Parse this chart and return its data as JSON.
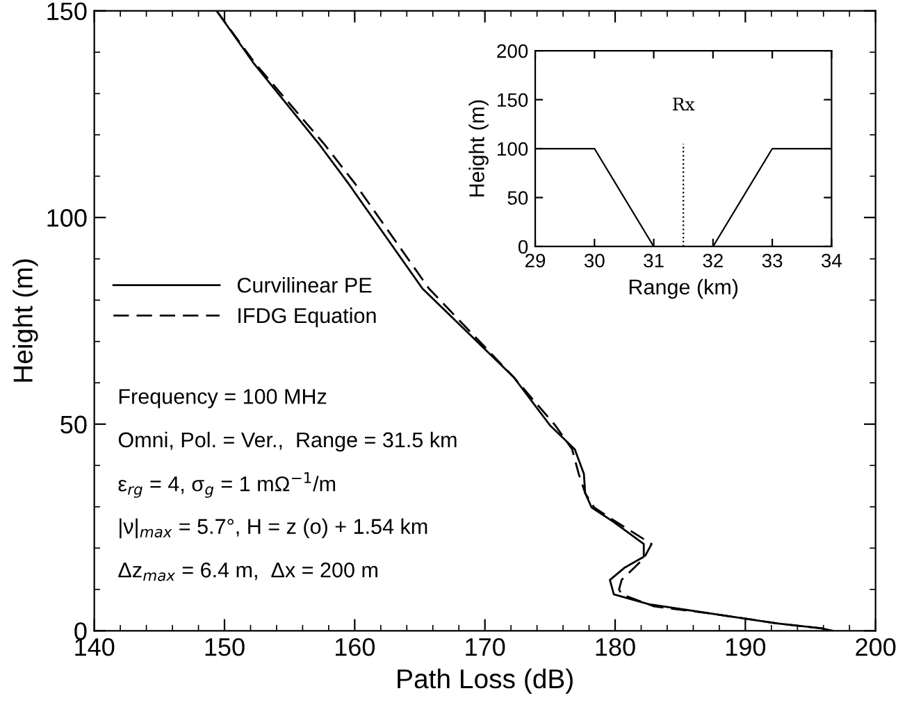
{
  "chart_data": [
    {
      "type": "line",
      "xlabel": "Path Loss (dB)",
      "ylabel": "Height (m)",
      "series": [
        {
          "name": "Curvilinear PE",
          "color": "#000000",
          "line_style": "solid",
          "x": [
            149.4,
            152.2,
            157.3,
            159.5,
            165.2,
            172.2,
            175.0,
            176.9,
            177.6,
            177.7,
            178.2,
            179.9,
            182.2,
            182.2,
            180.7,
            179.6,
            179.9,
            182.6,
            187.5,
            192.4,
            195.8,
            196.7
          ],
          "values": [
            150,
            137.5,
            117.6,
            108.3,
            82.8,
            61.4,
            49.7,
            43.9,
            38,
            33.3,
            29.8,
            26.3,
            21,
            17.9,
            15.2,
            12.3,
            8.8,
            6.4,
            4.1,
            1.8,
            0.6,
            0
          ]
        },
        {
          "name": "IFDG Equation",
          "color": "#000000",
          "line_style": "dashed",
          "x": [
            149.4,
            152.3,
            157.7,
            160.0,
            165.7,
            172.2,
            175.4,
            176.7,
            177.2,
            177.7,
            178.4,
            180.1,
            182.8,
            182.2,
            180.5,
            180.3,
            180.5,
            183.0,
            187.5,
            192.4,
            195.8,
            196.7
          ],
          "values": [
            150,
            137.5,
            117.6,
            108.3,
            82.8,
            61.4,
            49.7,
            43.9,
            38,
            33.3,
            29.8,
            26.3,
            21,
            17.5,
            12.3,
            10,
            8.8,
            5.9,
            4.1,
            1.8,
            0.6,
            0
          ]
        }
      ],
      "xlim": [
        140,
        200
      ],
      "ylim": [
        0,
        150
      ],
      "xticks": [
        140,
        {
          "value": 142,
          "label": null
        },
        {
          "value": 144,
          "label": null
        },
        {
          "value": 146,
          "label": null
        },
        {
          "value": 148,
          "label": null
        },
        150,
        {
          "value": 152,
          "label": null
        },
        {
          "value": 154,
          "label": null
        },
        {
          "value": 156,
          "label": null
        },
        {
          "value": 158,
          "label": null
        },
        160,
        {
          "value": 162,
          "label": null
        },
        {
          "value": 164,
          "label": null
        },
        {
          "value": 166,
          "label": null
        },
        {
          "value": 168,
          "label": null
        },
        170,
        {
          "value": 172,
          "label": null
        },
        {
          "value": 174,
          "label": null
        },
        {
          "value": 176,
          "label": null
        },
        {
          "value": 178,
          "label": null
        },
        180,
        {
          "value": 182,
          "label": null
        },
        {
          "value": 184,
          "label": null
        },
        {
          "value": 186,
          "label": null
        },
        {
          "value": 188,
          "label": null
        },
        190,
        {
          "value": 192,
          "label": null
        },
        {
          "value": 194,
          "label": null
        },
        {
          "value": 196,
          "label": null
        },
        {
          "value": 198,
          "label": null
        },
        200
      ],
      "yticks": [
        0,
        {
          "value": 10,
          "label": null
        },
        {
          "value": 20,
          "label": null
        },
        {
          "value": 30,
          "label": null
        },
        {
          "value": 40,
          "label": null
        },
        50,
        {
          "value": 60,
          "label": null
        },
        {
          "value": 70,
          "label": null
        },
        {
          "value": 80,
          "label": null
        },
        {
          "value": 90,
          "label": null
        },
        100,
        {
          "value": 110,
          "label": null
        },
        {
          "value": 120,
          "label": null
        },
        {
          "value": 130,
          "label": null
        },
        {
          "value": 140,
          "label": null
        },
        150
      ],
      "grid": false,
      "legend": "center left",
      "annotations": [
        "Frequency = 100 MHz",
        "Omni, Pol. = Ver.,  Range = 31.5 km",
        "ε$_{rg}$ = 4, σ$_{g}$ = 1 mΩ$^{−1}$/m",
        "|ν|$_{max}$ = 5.7°, H = z (o) + 1.54 km",
        "Δz$_{max}$ = 6.4 m,  Δx = 200 m"
      ]
    },
    {
      "type": "line",
      "xlabel": "Range (km)",
      "ylabel": "Height (m)",
      "series": [
        {
          "color": "#000000",
          "line_style": "solid",
          "x": [
            29,
            30,
            31,
            31.5,
            32,
            33,
            34
          ],
          "values": [
            100,
            100,
            0,
            null,
            0,
            100,
            100
          ]
        },
        {
          "color": "#000000",
          "line_style": "dotted",
          "x": [
            31.5,
            31.5
          ],
          "values": [
            0,
            105
          ]
        }
      ],
      "xlim": [
        29,
        34
      ],
      "ylim": [
        0,
        200
      ],
      "xticks": [
        29,
        30,
        31,
        32,
        33,
        34
      ],
      "yticks": [
        0,
        50,
        100,
        150,
        200
      ],
      "grid": false,
      "legend": false,
      "annotations": [
        "Rx"
      ]
    }
  ]
}
